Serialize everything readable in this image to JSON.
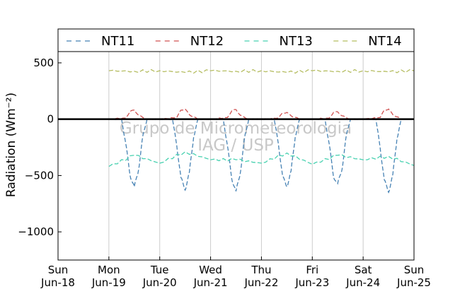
{
  "chart_data": {
    "type": "line",
    "title": "",
    "xlabel": "",
    "ylabel": "Radiation (Wm⁻²)",
    "ylim": [
      -1250,
      600
    ],
    "yticks": [
      500,
      0,
      -500,
      -1000
    ],
    "ytick_labels": [
      "500",
      "0",
      "−500",
      "−1000"
    ],
    "xlim": [
      "2015-06-18",
      "2015-06-25"
    ],
    "xtick_labels": [
      {
        "day": "Sun",
        "date": "Jun-18"
      },
      {
        "day": "Mon",
        "date": "Jun-19"
      },
      {
        "day": "Tue",
        "date": "Jun-20"
      },
      {
        "day": "Wed",
        "date": "Jun-21"
      },
      {
        "day": "Thu",
        "date": "Jun-22"
      },
      {
        "day": "Fri",
        "date": "Jun-23"
      },
      {
        "day": "Sat",
        "date": "Jun-24"
      },
      {
        "day": "Sun",
        "date": "Jun-25"
      }
    ],
    "grid": "vertical",
    "zero_line": true,
    "legend_position": "top",
    "watermark": [
      "Grupo de Micrometeorologia",
      "IAG / USP"
    ],
    "series": [
      {
        "name": "NT11",
        "color": "#4682b4",
        "linestyle": "dashed",
        "x": [
          "06-19 00:00",
          "06-19 06:00",
          "06-19 08:00",
          "06-19 10:00",
          "06-19 12:00",
          "06-19 14:00",
          "06-19 16:00",
          "06-19 18:00",
          "06-20 00:00",
          "06-20 06:00",
          "06-20 08:00",
          "06-20 10:00",
          "06-20 12:00",
          "06-20 14:00",
          "06-20 16:00",
          "06-20 18:00",
          "06-21 00:00",
          "06-21 06:00",
          "06-21 08:00",
          "06-21 10:00",
          "06-21 12:00",
          "06-21 14:00",
          "06-21 16:00",
          "06-21 18:00",
          "06-22 00:00",
          "06-22 06:00",
          "06-22 08:00",
          "06-22 10:00",
          "06-22 12:00",
          "06-22 14:00",
          "06-22 16:00",
          "06-22 18:00",
          "06-23 00:00",
          "06-23 06:00",
          "06-23 08:00",
          "06-23 10:00",
          "06-23 12:00",
          "06-23 14:00",
          "06-23 16:00",
          "06-23 18:00",
          "06-24 00:00",
          "06-24 06:00",
          "06-24 08:00",
          "06-24 10:00",
          "06-24 12:00",
          "06-24 14:00",
          "06-24 16:00",
          "06-24 18:00"
        ],
        "y": [
          0,
          0,
          -220,
          -500,
          -600,
          -450,
          -150,
          0,
          0,
          0,
          -230,
          -520,
          -630,
          -470,
          -160,
          0,
          0,
          0,
          -240,
          -530,
          -640,
          -480,
          -170,
          0,
          0,
          0,
          -220,
          -510,
          -600,
          -460,
          -150,
          0,
          0,
          0,
          -220,
          -510,
          -570,
          -450,
          -150,
          0,
          0,
          0,
          -250,
          -540,
          -650,
          -490,
          -170,
          0
        ]
      },
      {
        "name": "NT12",
        "color": "#d05050",
        "linestyle": "dashed",
        "x": [
          "06-19 00:00",
          "06-19 08:00",
          "06-19 10:00",
          "06-19 12:00",
          "06-19 14:00",
          "06-19 18:00",
          "06-20 00:00",
          "06-20 08:00",
          "06-20 10:00",
          "06-20 12:00",
          "06-20 14:00",
          "06-20 18:00",
          "06-21 00:00",
          "06-21 08:00",
          "06-21 10:00",
          "06-21 12:00",
          "06-21 14:00",
          "06-21 18:00",
          "06-22 00:00",
          "06-22 08:00",
          "06-22 10:00",
          "06-22 12:00",
          "06-22 14:00",
          "06-22 18:00",
          "06-23 00:00",
          "06-23 08:00",
          "06-23 10:00",
          "06-23 12:00",
          "06-23 14:00",
          "06-23 18:00",
          "06-24 00:00",
          "06-24 08:00",
          "06-24 10:00",
          "06-24 12:00",
          "06-24 14:00",
          "06-24 18:00"
        ],
        "y": [
          0,
          10,
          70,
          80,
          35,
          0,
          0,
          15,
          80,
          90,
          40,
          0,
          0,
          15,
          75,
          85,
          35,
          0,
          0,
          10,
          55,
          60,
          30,
          0,
          0,
          10,
          60,
          65,
          30,
          0,
          0,
          15,
          80,
          90,
          40,
          0
        ]
      },
      {
        "name": "NT13",
        "color": "#48d1b0",
        "linestyle": "dashed",
        "x": [
          "06-19 00:00",
          "06-19 12:00",
          "06-20 00:00",
          "06-20 12:00",
          "06-21 00:00",
          "06-21 12:00",
          "06-22 00:00",
          "06-22 12:00",
          "06-23 00:00",
          "06-23 12:00",
          "06-24 00:00",
          "06-24 12:00",
          "06-25 00:00"
        ],
        "y": [
          -420,
          -320,
          -390,
          -290,
          -360,
          -360,
          -390,
          -300,
          -400,
          -320,
          -360,
          -330,
          -410
        ]
      },
      {
        "name": "NT14",
        "color": "#b5bd61",
        "linestyle": "dashed",
        "x": [
          "06-19 00:00",
          "06-19 12:00",
          "06-20 00:00",
          "06-20 12:00",
          "06-21 00:00",
          "06-21 12:00",
          "06-22 00:00",
          "06-22 12:00",
          "06-23 00:00",
          "06-23 12:00",
          "06-24 00:00",
          "06-24 12:00",
          "06-25 00:00"
        ],
        "y": [
          430,
          425,
          430,
          415,
          430,
          425,
          430,
          415,
          430,
          425,
          430,
          420,
          430
        ]
      }
    ]
  }
}
